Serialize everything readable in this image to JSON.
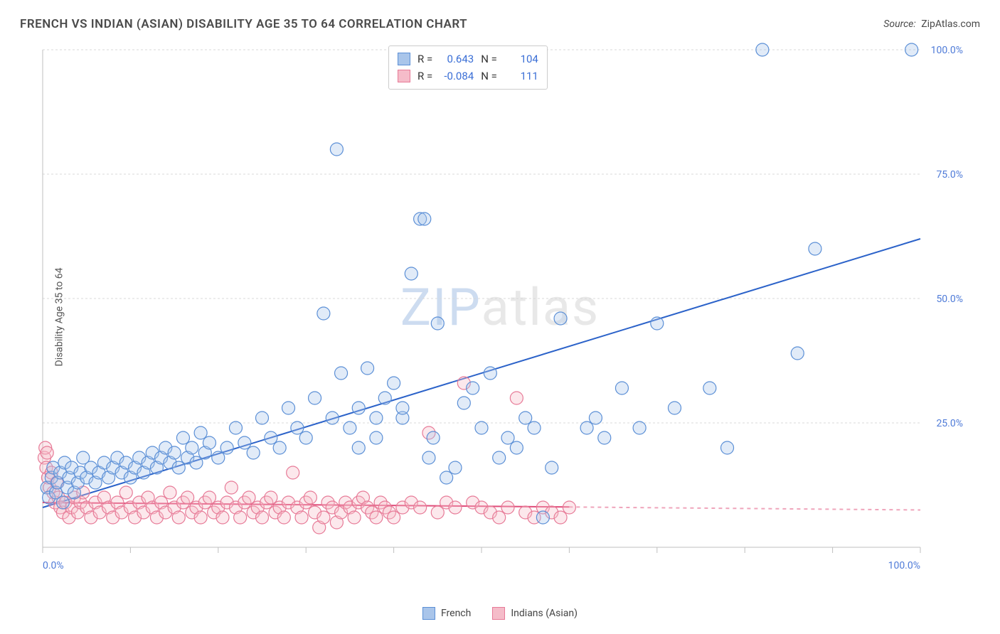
{
  "title": "FRENCH VS INDIAN (ASIAN) DISABILITY AGE 35 TO 64 CORRELATION CHART",
  "source_label": "Source:",
  "source_value": "ZipAtlas.com",
  "ylabel": "Disability Age 35 to 64",
  "watermark_a": "ZIP",
  "watermark_b": "atlas",
  "chart": {
    "type": "scatter-with-regression",
    "background_color": "#ffffff",
    "grid_color": "#d8d8d8",
    "axis_color": "#bfbfbf",
    "tick_color": "#bfbfbf",
    "label_color": "#4f7bd8",
    "xlim": [
      0,
      100
    ],
    "ylim": [
      0,
      100
    ],
    "x_ticks": [
      0,
      10,
      20,
      30,
      40,
      50,
      60,
      70,
      80,
      90,
      100
    ],
    "y_ticks": [
      25,
      50,
      75,
      100
    ],
    "x_tick_labels": {
      "0": "0.0%",
      "100": "100.0%"
    },
    "y_tick_labels": {
      "25": "25.0%",
      "50": "50.0%",
      "75": "75.0%",
      "100": "100.0%"
    },
    "marker_radius": 9,
    "marker_stroke_width": 1.2,
    "marker_fill_opacity": 0.35,
    "line_width": 2,
    "series": [
      {
        "name": "French",
        "color_fill": "#a9c5ea",
        "color_stroke": "#5b8fd6",
        "line_color": "#2b62c9",
        "R": "0.643",
        "N": "104",
        "regression": {
          "x1": 0,
          "y1": 8,
          "x2": 100,
          "y2": 62,
          "solid_until_x": 100
        },
        "points": [
          [
            0.5,
            12
          ],
          [
            0.7,
            10
          ],
          [
            1,
            14
          ],
          [
            1.2,
            16
          ],
          [
            1.5,
            11
          ],
          [
            1.7,
            13
          ],
          [
            2,
            15
          ],
          [
            2.3,
            9
          ],
          [
            2.5,
            17
          ],
          [
            2.8,
            12
          ],
          [
            3,
            14
          ],
          [
            3.3,
            16
          ],
          [
            3.6,
            11
          ],
          [
            4,
            13
          ],
          [
            4.3,
            15
          ],
          [
            4.6,
            18
          ],
          [
            5,
            14
          ],
          [
            5.5,
            16
          ],
          [
            6,
            13
          ],
          [
            6.4,
            15
          ],
          [
            7,
            17
          ],
          [
            7.5,
            14
          ],
          [
            8,
            16
          ],
          [
            8.5,
            18
          ],
          [
            9,
            15
          ],
          [
            9.5,
            17
          ],
          [
            10,
            14
          ],
          [
            10.5,
            16
          ],
          [
            11,
            18
          ],
          [
            11.5,
            15
          ],
          [
            12,
            17
          ],
          [
            12.5,
            19
          ],
          [
            13,
            16
          ],
          [
            13.5,
            18
          ],
          [
            14,
            20
          ],
          [
            14.5,
            17
          ],
          [
            15,
            19
          ],
          [
            15.5,
            16
          ],
          [
            16,
            22
          ],
          [
            16.5,
            18
          ],
          [
            17,
            20
          ],
          [
            17.5,
            17
          ],
          [
            18,
            23
          ],
          [
            18.5,
            19
          ],
          [
            19,
            21
          ],
          [
            20,
            18
          ],
          [
            21,
            20
          ],
          [
            22,
            24
          ],
          [
            23,
            21
          ],
          [
            24,
            19
          ],
          [
            25,
            26
          ],
          [
            26,
            22
          ],
          [
            27,
            20
          ],
          [
            28,
            28
          ],
          [
            29,
            24
          ],
          [
            30,
            22
          ],
          [
            31,
            30
          ],
          [
            32,
            47
          ],
          [
            33,
            26
          ],
          [
            33.5,
            80
          ],
          [
            34,
            35
          ],
          [
            35,
            24
          ],
          [
            36,
            28
          ],
          [
            37,
            36
          ],
          [
            38,
            22
          ],
          [
            39,
            30
          ],
          [
            40,
            33
          ],
          [
            41,
            26
          ],
          [
            42,
            55
          ],
          [
            43,
            66
          ],
          [
            43.5,
            66
          ],
          [
            44,
            18
          ],
          [
            44.5,
            22
          ],
          [
            45,
            45
          ],
          [
            46,
            14
          ],
          [
            47,
            16
          ],
          [
            48,
            29
          ],
          [
            49,
            32
          ],
          [
            50,
            24
          ],
          [
            51,
            35
          ],
          [
            52,
            18
          ],
          [
            53,
            22
          ],
          [
            54,
            20
          ],
          [
            55,
            26
          ],
          [
            56,
            24
          ],
          [
            57,
            6
          ],
          [
            58,
            16
          ],
          [
            59,
            46
          ],
          [
            62,
            24
          ],
          [
            63,
            26
          ],
          [
            64,
            22
          ],
          [
            66,
            32
          ],
          [
            68,
            24
          ],
          [
            70,
            45
          ],
          [
            72,
            28
          ],
          [
            76,
            32
          ],
          [
            78,
            20
          ],
          [
            82,
            100
          ],
          [
            86,
            39
          ],
          [
            88,
            60
          ],
          [
            99,
            100
          ],
          [
            41,
            28
          ],
          [
            36,
            20
          ],
          [
            38,
            26
          ]
        ]
      },
      {
        "name": "Indians (Asian)",
        "color_fill": "#f5bcc9",
        "color_stroke": "#e77a97",
        "line_color": "#e04d7a",
        "R": "-0.084",
        "N": "111",
        "regression": {
          "x1": 0,
          "y1": 9,
          "x2": 100,
          "y2": 7.5,
          "solid_until_x": 60
        },
        "points": [
          [
            0.2,
            18
          ],
          [
            0.4,
            16
          ],
          [
            0.6,
            14
          ],
          [
            0.8,
            12
          ],
          [
            1,
            15
          ],
          [
            1.2,
            11
          ],
          [
            1.4,
            9
          ],
          [
            1.6,
            13
          ],
          [
            1.8,
            10
          ],
          [
            2,
            8
          ],
          [
            2.3,
            7
          ],
          [
            2.6,
            9
          ],
          [
            3,
            6
          ],
          [
            3.3,
            8
          ],
          [
            3.6,
            10
          ],
          [
            4,
            7
          ],
          [
            4.3,
            9
          ],
          [
            4.6,
            11
          ],
          [
            5,
            8
          ],
          [
            5.5,
            6
          ],
          [
            6,
            9
          ],
          [
            6.5,
            7
          ],
          [
            7,
            10
          ],
          [
            7.5,
            8
          ],
          [
            8,
            6
          ],
          [
            8.5,
            9
          ],
          [
            9,
            7
          ],
          [
            9.5,
            11
          ],
          [
            10,
            8
          ],
          [
            10.5,
            6
          ],
          [
            11,
            9
          ],
          [
            11.5,
            7
          ],
          [
            12,
            10
          ],
          [
            12.5,
            8
          ],
          [
            13,
            6
          ],
          [
            13.5,
            9
          ],
          [
            14,
            7
          ],
          [
            14.5,
            11
          ],
          [
            15,
            8
          ],
          [
            15.5,
            6
          ],
          [
            16,
            9
          ],
          [
            16.5,
            10
          ],
          [
            17,
            7
          ],
          [
            17.5,
            8
          ],
          [
            18,
            6
          ],
          [
            18.5,
            9
          ],
          [
            19,
            10
          ],
          [
            19.5,
            7
          ],
          [
            20,
            8
          ],
          [
            20.5,
            6
          ],
          [
            21,
            9
          ],
          [
            21.5,
            12
          ],
          [
            22,
            8
          ],
          [
            22.5,
            6
          ],
          [
            23,
            9
          ],
          [
            23.5,
            10
          ],
          [
            24,
            7
          ],
          [
            24.5,
            8
          ],
          [
            25,
            6
          ],
          [
            25.5,
            9
          ],
          [
            26,
            10
          ],
          [
            26.5,
            7
          ],
          [
            27,
            8
          ],
          [
            27.5,
            6
          ],
          [
            28,
            9
          ],
          [
            28.5,
            15
          ],
          [
            29,
            8
          ],
          [
            29.5,
            6
          ],
          [
            30,
            9
          ],
          [
            30.5,
            10
          ],
          [
            31,
            7
          ],
          [
            31.5,
            4
          ],
          [
            32,
            6
          ],
          [
            32.5,
            9
          ],
          [
            33,
            8
          ],
          [
            33.5,
            5
          ],
          [
            34,
            7
          ],
          [
            34.5,
            9
          ],
          [
            35,
            8
          ],
          [
            35.5,
            6
          ],
          [
            36,
            9
          ],
          [
            36.5,
            10
          ],
          [
            37,
            8
          ],
          [
            37.5,
            7
          ],
          [
            38,
            6
          ],
          [
            38.5,
            9
          ],
          [
            39,
            8
          ],
          [
            39.5,
            7
          ],
          [
            40,
            6
          ],
          [
            41,
            8
          ],
          [
            42,
            9
          ],
          [
            43,
            8
          ],
          [
            44,
            23
          ],
          [
            45,
            7
          ],
          [
            46,
            9
          ],
          [
            47,
            8
          ],
          [
            48,
            33
          ],
          [
            49,
            9
          ],
          [
            50,
            8
          ],
          [
            51,
            7
          ],
          [
            52,
            6
          ],
          [
            53,
            8
          ],
          [
            54,
            30
          ],
          [
            55,
            7
          ],
          [
            56,
            6
          ],
          [
            57,
            8
          ],
          [
            58,
            7
          ],
          [
            59,
            6
          ],
          [
            60,
            8
          ],
          [
            0.3,
            20
          ],
          [
            0.5,
            19
          ]
        ]
      }
    ],
    "stats_legend": {
      "r_key": "R =",
      "n_key": "N ="
    },
    "bottom_legend": [
      {
        "label": "French",
        "fill": "#a9c5ea",
        "stroke": "#5b8fd6"
      },
      {
        "label": "Indians (Asian)",
        "fill": "#f5bcc9",
        "stroke": "#e77a97"
      }
    ]
  }
}
